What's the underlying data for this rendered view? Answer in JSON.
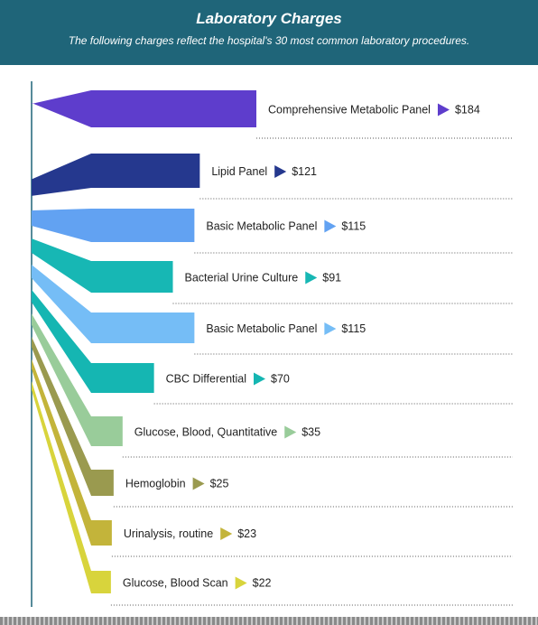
{
  "header": {
    "title": "Laboratory Charges",
    "subtitle": "The following charges reflect the hospital's 30 most common laboratory procedures."
  },
  "chart_data": {
    "type": "bar",
    "orientation": "horizontal",
    "categories": [
      "Comprehensive Metabolic Panel",
      "Lipid Panel",
      "Basic Metabolic Panel",
      "Bacterial Urine Culture",
      "Basic Metabolic Panel",
      "CBC Differential",
      "Glucose, Blood, Quantitative",
      "Hemoglobin",
      "Urinalysis, routine",
      "Glucose, Blood Scan"
    ],
    "values": [
      184,
      121,
      115,
      91,
      115,
      70,
      35,
      25,
      23,
      22
    ],
    "value_labels": [
      "$184",
      "$121",
      "$115",
      "$91",
      "$115",
      "$70",
      "$35",
      "$25",
      "$23",
      "$22"
    ],
    "colors": [
      "#5e3dcc",
      "#25388e",
      "#62a2f2",
      "#17b7b4",
      "#75bdf6",
      "#15b6b2",
      "#99cc9a",
      "#9a9a4f",
      "#c3b43a",
      "#d8d43c"
    ],
    "title": "Laboratory Charges",
    "grid": false,
    "legend": "none"
  }
}
